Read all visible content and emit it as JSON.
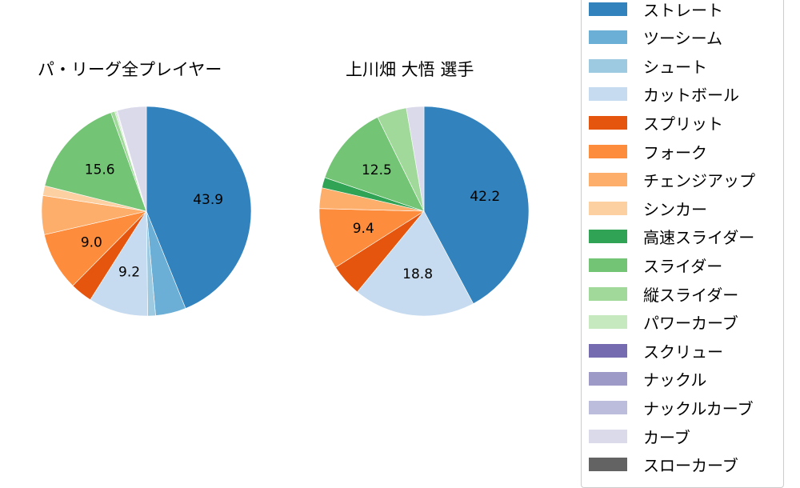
{
  "chart_data": [
    {
      "type": "pie",
      "title": "パ・リーグ全プレイヤー",
      "categories": [
        "ストレート",
        "ツーシーム",
        "シュート",
        "カットボール",
        "スプリット",
        "フォーク",
        "チェンジアップ",
        "シンカー",
        "高速スライダー",
        "スライダー",
        "縦スライダー",
        "パワーカーブ",
        "スクリュー",
        "ナックル",
        "ナックルカーブ",
        "カーブ",
        "スローカーブ"
      ],
      "values": [
        43.9,
        4.7,
        1.2,
        9.2,
        3.4,
        9.0,
        6.0,
        1.5,
        0.0,
        15.6,
        0.6,
        0.2,
        0.1,
        0.0,
        0.1,
        4.5,
        0.0
      ],
      "labels_shown": [
        "43.9",
        "9.2",
        "9.0",
        "15.6"
      ],
      "start_angle": 90,
      "direction": "clockwise"
    },
    {
      "type": "pie",
      "title": "上川畑 大悟  選手",
      "categories": [
        "ストレート",
        "ツーシーム",
        "シュート",
        "カットボール",
        "スプリット",
        "フォーク",
        "チェンジアップ",
        "シンカー",
        "高速スライダー",
        "スライダー",
        "縦スライダー",
        "パワーカーブ",
        "スクリュー",
        "ナックル",
        "ナックルカーブ",
        "カーブ",
        "スローカーブ"
      ],
      "values": [
        42.2,
        0.0,
        0.0,
        18.8,
        5.0,
        9.4,
        3.2,
        0.0,
        1.6,
        12.5,
        4.6,
        0.0,
        0.0,
        0.0,
        0.0,
        2.7,
        0.0
      ],
      "labels_shown": [
        "42.2",
        "18.8",
        "9.4",
        "12.5"
      ],
      "start_angle": 90,
      "direction": "clockwise"
    }
  ],
  "titles": {
    "left": "パ・リーグ全プレイヤー",
    "right": "上川畑 大悟  選手"
  },
  "legend": [
    {
      "label": "ストレート",
      "color": "#3182bd"
    },
    {
      "label": "ツーシーム",
      "color": "#6baed6"
    },
    {
      "label": "シュート",
      "color": "#9ecae1"
    },
    {
      "label": "カットボール",
      "color": "#c6dbef"
    },
    {
      "label": "スプリット",
      "color": "#e6550d"
    },
    {
      "label": "フォーク",
      "color": "#fd8d3c"
    },
    {
      "label": "チェンジアップ",
      "color": "#fdae6b"
    },
    {
      "label": "シンカー",
      "color": "#fdd0a2"
    },
    {
      "label": "高速スライダー",
      "color": "#31a354"
    },
    {
      "label": "スライダー",
      "color": "#74c476"
    },
    {
      "label": "縦スライダー",
      "color": "#a1d99b"
    },
    {
      "label": "パワーカーブ",
      "color": "#c7e9c0"
    },
    {
      "label": "スクリュー",
      "color": "#756bb1"
    },
    {
      "label": "ナックル",
      "color": "#9e9ac8"
    },
    {
      "label": "ナックルカーブ",
      "color": "#bcbddc"
    },
    {
      "label": "カーブ",
      "color": "#dadaeb"
    },
    {
      "label": "スローカーブ",
      "color": "#636363"
    }
  ]
}
